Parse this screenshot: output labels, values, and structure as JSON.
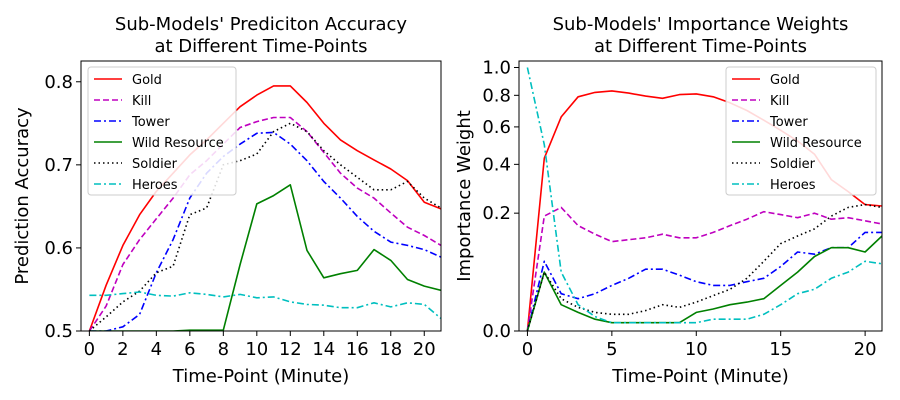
{
  "chart_data": [
    {
      "type": "line",
      "title_lines": [
        "Sub-Models' Prediciton Accuracy",
        "at Different Time-Points"
      ],
      "xlabel": "Time-Point (Minute)",
      "ylabel": "Prediction Accuracy",
      "xlim": [
        -0.5,
        21
      ],
      "ylim": [
        0.5,
        0.825
      ],
      "xticks": [
        0,
        2,
        4,
        6,
        8,
        10,
        12,
        14,
        16,
        18,
        20
      ],
      "yticks": [
        0.5,
        0.6,
        0.7,
        0.8
      ],
      "ytick_labels": [
        "0.5",
        "0.6",
        "0.7",
        "0.8"
      ],
      "legend_position": "top-left",
      "x": [
        0,
        1,
        2,
        3,
        4,
        5,
        6,
        7,
        8,
        9,
        10,
        11,
        12,
        13,
        14,
        15,
        16,
        17,
        18,
        19,
        20,
        21
      ],
      "series": [
        {
          "name": "Gold",
          "color": "#ff0000",
          "style": "solid",
          "values": [
            0.5,
            0.555,
            0.603,
            0.64,
            0.668,
            0.69,
            0.712,
            0.73,
            0.75,
            0.77,
            0.784,
            0.795,
            0.795,
            0.775,
            0.75,
            0.73,
            0.717,
            0.706,
            0.695,
            0.681,
            0.655,
            0.647
          ]
        },
        {
          "name": "Kill",
          "color": "#bf00bf",
          "style": "dashed",
          "values": [
            0.5,
            0.53,
            0.58,
            0.61,
            0.635,
            0.66,
            0.688,
            0.705,
            0.725,
            0.745,
            0.752,
            0.757,
            0.757,
            0.74,
            0.715,
            0.69,
            0.672,
            0.66,
            0.642,
            0.625,
            0.615,
            0.603
          ]
        },
        {
          "name": "Tower",
          "color": "#0000ff",
          "style": "dashdot",
          "values": [
            0.5,
            0.5,
            0.505,
            0.52,
            0.57,
            0.61,
            0.66,
            0.69,
            0.71,
            0.725,
            0.738,
            0.739,
            0.725,
            0.705,
            0.68,
            0.66,
            0.638,
            0.62,
            0.607,
            0.603,
            0.598,
            0.589
          ]
        },
        {
          "name": "Wild Resource",
          "color": "#008000",
          "style": "solid",
          "values": [
            0.5,
            0.5,
            0.5,
            0.5,
            0.5,
            0.5,
            0.501,
            0.501,
            0.501,
            0.58,
            0.653,
            0.663,
            0.676,
            0.597,
            0.564,
            0.569,
            0.573,
            0.598,
            0.585,
            0.562,
            0.554,
            0.549
          ]
        },
        {
          "name": "Soldier",
          "color": "#000000",
          "style": "dotted",
          "values": [
            0.5,
            0.517,
            0.535,
            0.548,
            0.57,
            0.578,
            0.64,
            0.648,
            0.7,
            0.705,
            0.713,
            0.74,
            0.75,
            0.74,
            0.717,
            0.7,
            0.685,
            0.67,
            0.67,
            0.68,
            0.66,
            0.648
          ]
        },
        {
          "name": "Heroes",
          "color": "#00bfbf",
          "style": "dashdot",
          "values": [
            0.543,
            0.543,
            0.545,
            0.547,
            0.543,
            0.542,
            0.546,
            0.544,
            0.541,
            0.544,
            0.54,
            0.541,
            0.535,
            0.532,
            0.531,
            0.528,
            0.528,
            0.534,
            0.529,
            0.534,
            0.532,
            0.515
          ]
        }
      ]
    },
    {
      "type": "line",
      "title_lines": [
        "Sub-Models' Importance Weights",
        "at Different Time-Points"
      ],
      "xlabel": "Time-Point (Minute)",
      "ylabel": "Importance Weight",
      "xlim": [
        -0.5,
        21
      ],
      "yscale": "sqrt",
      "ylim": [
        0,
        1.05
      ],
      "xticks": [
        0,
        5,
        10,
        15,
        20
      ],
      "yticks": [
        0.0,
        0.2,
        0.4,
        0.6,
        0.8,
        1.0
      ],
      "ytick_labels": [
        "0.0",
        "0.2",
        "0.4",
        "0.6",
        "0.8",
        "1.0"
      ],
      "legend_position": "top-right",
      "x": [
        0,
        1,
        2,
        3,
        4,
        5,
        6,
        7,
        8,
        9,
        10,
        11,
        12,
        13,
        14,
        15,
        16,
        17,
        18,
        19,
        20,
        21
      ],
      "series": [
        {
          "name": "Gold",
          "color": "#ff0000",
          "style": "solid",
          "values": [
            0.0,
            0.43,
            0.66,
            0.79,
            0.82,
            0.83,
            0.815,
            0.795,
            0.78,
            0.805,
            0.81,
            0.79,
            0.75,
            0.7,
            0.64,
            0.58,
            0.52,
            0.45,
            0.33,
            0.28,
            0.23,
            0.225
          ]
        },
        {
          "name": "Kill",
          "color": "#bf00bf",
          "style": "dashed",
          "values": [
            0.0,
            0.19,
            0.22,
            0.16,
            0.135,
            0.115,
            0.12,
            0.125,
            0.135,
            0.125,
            0.125,
            0.14,
            0.16,
            0.18,
            0.205,
            0.195,
            0.185,
            0.2,
            0.18,
            0.185,
            0.175,
            0.165
          ]
        },
        {
          "name": "Tower",
          "color": "#0000ff",
          "style": "dashdot",
          "values": [
            0.0,
            0.07,
            0.02,
            0.015,
            0.02,
            0.03,
            0.04,
            0.055,
            0.055,
            0.045,
            0.035,
            0.03,
            0.03,
            0.035,
            0.04,
            0.06,
            0.09,
            0.085,
            0.1,
            0.1,
            0.14,
            0.14
          ]
        },
        {
          "name": "Wild Resource",
          "color": "#008000",
          "style": "solid",
          "values": [
            0.0,
            0.05,
            0.01,
            0.005,
            0.002,
            0.001,
            0.001,
            0.001,
            0.001,
            0.001,
            0.005,
            0.007,
            0.01,
            0.012,
            0.015,
            0.03,
            0.05,
            0.08,
            0.1,
            0.1,
            0.09,
            0.13
          ]
        },
        {
          "name": "Soldier",
          "color": "#000000",
          "style": "dotted",
          "values": [
            0.0,
            0.05,
            0.015,
            0.008,
            0.005,
            0.004,
            0.004,
            0.006,
            0.01,
            0.008,
            0.012,
            0.018,
            0.025,
            0.04,
            0.07,
            0.11,
            0.13,
            0.15,
            0.19,
            0.22,
            0.23,
            0.22
          ]
        },
        {
          "name": "Heroes",
          "color": "#00bfbf",
          "style": "dashdot",
          "values": [
            1.0,
            0.5,
            0.05,
            0.01,
            0.003,
            0.001,
            0.001,
            0.001,
            0.001,
            0.001,
            0.001,
            0.002,
            0.002,
            0.002,
            0.004,
            0.01,
            0.02,
            0.025,
            0.04,
            0.05,
            0.07,
            0.065
          ]
        }
      ]
    }
  ]
}
